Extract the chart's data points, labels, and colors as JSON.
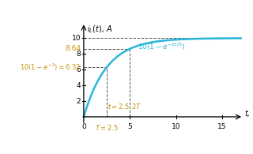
{
  "xlim": [
    -0.3,
    17.5
  ],
  "ylim": [
    -1.2,
    12.5
  ],
  "tau": 2.5,
  "amplitude": 10,
  "curve_color": "#29b6d8",
  "curve_lw": 1.8,
  "dashed_color": "#555555",
  "label_color": "#c8920a",
  "curve_label_color": "#1a9dbf",
  "background_color": "#ffffff",
  "x_ticks_pos": [
    5,
    10,
    15
  ],
  "y_ticks_pos": [
    2,
    4,
    6,
    8,
    10
  ],
  "figsize": [
    3.2,
    1.95
  ],
  "dpi": 100
}
